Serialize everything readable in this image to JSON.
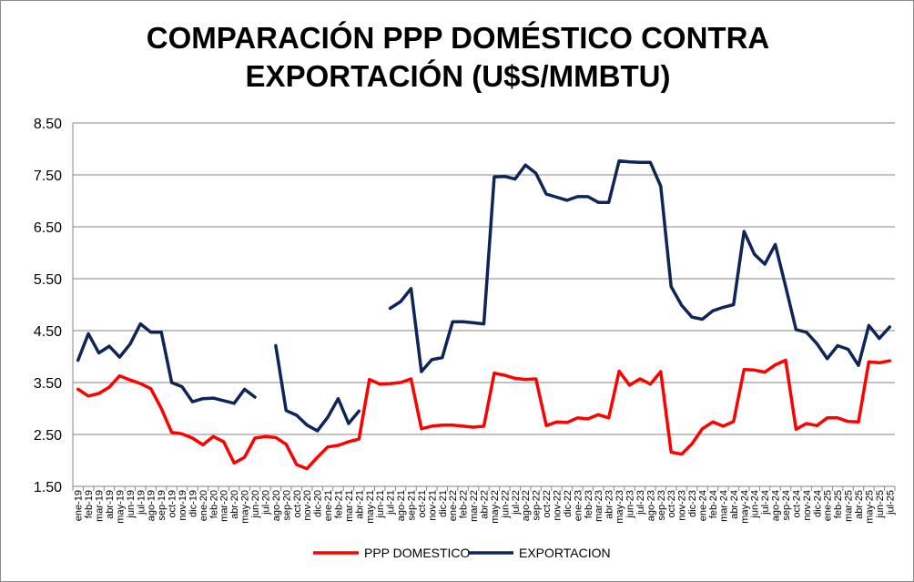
{
  "chart_data": {
    "type": "line",
    "title_line1": "COMPARACIÓN PPP DOMÉSTICO CONTRA",
    "title_line2": "EXPORTACIÓN (U$S/MMBTU)",
    "xlabel": "",
    "ylabel": "",
    "ylim": [
      1.5,
      8.5
    ],
    "yticks": [
      "1.50",
      "2.50",
      "3.50",
      "4.50",
      "5.50",
      "6.50",
      "7.50",
      "8.50"
    ],
    "grid": true,
    "legend_position": "bottom",
    "categories": [
      "ene-19",
      "feb-19",
      "mar-19",
      "abr-19",
      "may-19",
      "jun-19",
      "jul-19",
      "ago-19",
      "sep-19",
      "oct-19",
      "nov-19",
      "dic-19",
      "ene-20",
      "feb-20",
      "mar-20",
      "abr-20",
      "may-20",
      "jun-20",
      "jul-20",
      "ago-20",
      "sep-20",
      "oct-20",
      "nov-20",
      "dic-20",
      "ene-21",
      "feb-21",
      "mar-21",
      "abr-21",
      "may-21",
      "jun-21",
      "jul-21",
      "ago-21",
      "sep-21",
      "oct-21",
      "nov-21",
      "dic-21",
      "ene-22",
      "feb-22",
      "mar-22",
      "abr-22",
      "may-22",
      "jun-22",
      "jul-22",
      "ago-22",
      "sep-22",
      "oct-22",
      "nov-22",
      "dic-22",
      "ene-23",
      "feb-23",
      "mar-23",
      "abr-23",
      "may-23",
      "jun-23",
      "jul-23",
      "ago-23",
      "sep-23",
      "oct-23",
      "nov-23",
      "dic-23",
      "ene-24",
      "feb-24",
      "mar-24",
      "abr-24",
      "may-24",
      "jun-24",
      "jul-24",
      "ago-24",
      "sep-24",
      "oct-24",
      "nov-24",
      "dic-24",
      "ene-25",
      "feb-25",
      "mar-25",
      "abr-25",
      "may-25",
      "jun-25",
      "jul-25"
    ],
    "series": [
      {
        "name": "PPP DOMESTICO",
        "color": "#ff0000",
        "values": [
          3.37,
          3.24,
          3.29,
          3.41,
          3.63,
          3.55,
          3.48,
          3.38,
          3.0,
          2.54,
          2.51,
          2.43,
          2.3,
          2.46,
          2.36,
          1.95,
          2.06,
          2.43,
          2.46,
          2.44,
          2.31,
          1.92,
          1.84,
          2.06,
          2.26,
          2.29,
          2.36,
          2.41,
          3.56,
          3.47,
          3.48,
          3.5,
          3.57,
          2.61,
          2.66,
          2.68,
          2.68,
          2.66,
          2.64,
          2.66,
          3.68,
          3.64,
          3.58,
          3.56,
          3.57,
          2.67,
          2.74,
          2.73,
          2.82,
          2.8,
          2.88,
          2.82,
          3.72,
          3.45,
          3.57,
          3.47,
          3.71,
          2.16,
          2.12,
          2.32,
          2.61,
          2.74,
          2.66,
          2.75,
          3.75,
          3.74,
          3.7,
          3.84,
          3.93,
          2.6,
          2.71,
          2.67,
          2.82,
          2.82,
          2.75,
          2.74,
          3.9,
          3.88,
          3.92
        ]
      },
      {
        "name": "EXPORTACION",
        "color": "#0f2457",
        "values": [
          3.93,
          4.44,
          4.07,
          4.2,
          3.99,
          4.24,
          4.63,
          4.47,
          4.47,
          3.5,
          3.42,
          3.13,
          3.19,
          3.2,
          3.15,
          3.1,
          3.37,
          3.22,
          null,
          4.21,
          2.96,
          2.87,
          2.68,
          2.57,
          2.83,
          3.19,
          2.71,
          2.95,
          null,
          null,
          4.93,
          5.06,
          5.31,
          3.71,
          3.94,
          3.98,
          4.67,
          4.67,
          4.65,
          4.63,
          7.46,
          7.47,
          7.42,
          7.69,
          7.53,
          7.13,
          7.07,
          7.01,
          7.08,
          7.08,
          6.97,
          6.97,
          7.77,
          7.75,
          7.74,
          7.74,
          7.28,
          5.35,
          4.99,
          4.76,
          4.72,
          4.88,
          4.95,
          5.0,
          6.41,
          5.97,
          5.78,
          6.16,
          5.35,
          4.52,
          4.47,
          4.25,
          3.96,
          4.21,
          4.14,
          3.83,
          4.6,
          4.35,
          4.57
        ]
      }
    ]
  }
}
